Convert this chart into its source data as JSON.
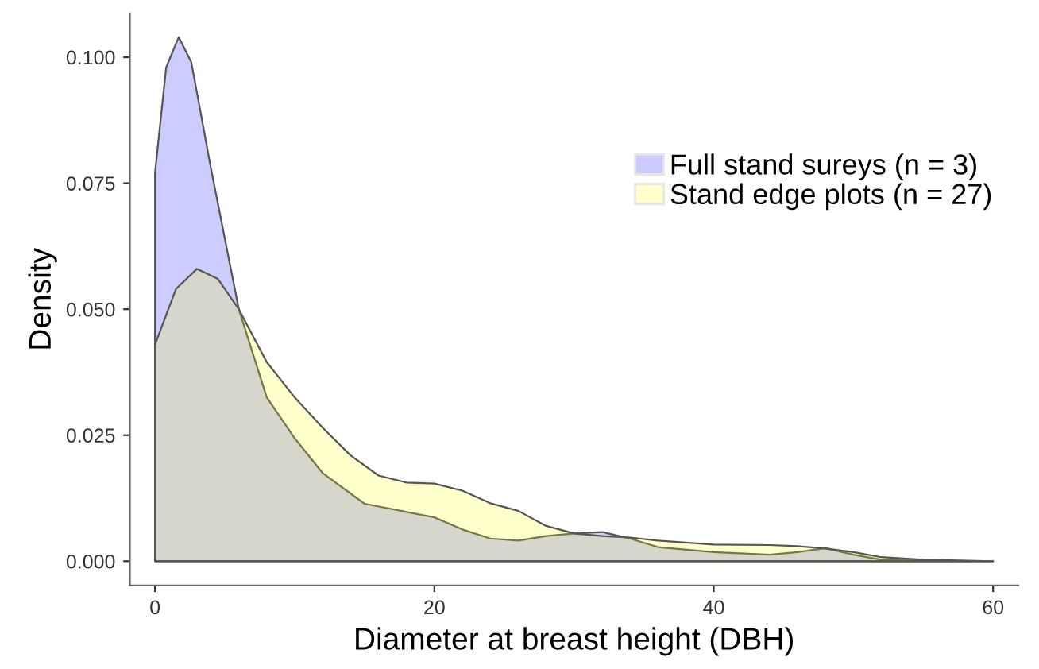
{
  "chart_data": {
    "type": "area",
    "xlabel": "Diameter at breast height (DBH)",
    "ylabel": "Density",
    "xlim": [
      -1.8,
      61.8
    ],
    "ylim": [
      -0.0048,
      0.1087
    ],
    "xticks": [
      0,
      20,
      40,
      60
    ],
    "yticks": [
      {
        "value": 0,
        "label": "0.000"
      },
      {
        "value": 0.025,
        "label": "0.025"
      },
      {
        "value": 0.05,
        "label": "0.050"
      },
      {
        "value": 0.075,
        "label": "0.075"
      },
      {
        "value": 0.1,
        "label": "0.100"
      }
    ],
    "legend": "top right",
    "series": [
      {
        "name": "Full stand sureys (n = 3)",
        "color": "#0000ff",
        "x": [
          0,
          0.8,
          1.7,
          2.6,
          4,
          6,
          8,
          10,
          12,
          15,
          20,
          22,
          24,
          26,
          28,
          30,
          32,
          34,
          36,
          40,
          44,
          46,
          48,
          50,
          52,
          55,
          60
        ],
        "values": [
          0.077,
          0.098,
          0.104,
          0.099,
          0.078,
          0.05,
          0.0325,
          0.0244,
          0.0175,
          0.0114,
          0.0087,
          0.0063,
          0.0045,
          0.0041,
          0.005,
          0.0055,
          0.0058,
          0.0045,
          0.0028,
          0.0018,
          0.0013,
          0.0018,
          0.0026,
          0.0013,
          0.0003,
          0.0001,
          0
        ]
      },
      {
        "name": "Stand edge plots (n = 27)",
        "color": "#ffff00",
        "x": [
          0,
          1.5,
          3,
          4.5,
          6,
          8,
          10,
          12,
          14,
          16,
          18,
          20,
          22,
          24,
          26,
          28,
          30,
          32,
          34,
          36,
          40,
          44,
          46,
          48,
          50,
          52,
          55,
          60
        ],
        "values": [
          0.043,
          0.054,
          0.058,
          0.056,
          0.05,
          0.0395,
          0.0325,
          0.0265,
          0.021,
          0.017,
          0.0156,
          0.0154,
          0.014,
          0.0115,
          0.01,
          0.007,
          0.0055,
          0.005,
          0.0047,
          0.0041,
          0.0033,
          0.0032,
          0.003,
          0.0025,
          0.0018,
          0.0008,
          0.0003,
          0
        ]
      }
    ]
  }
}
